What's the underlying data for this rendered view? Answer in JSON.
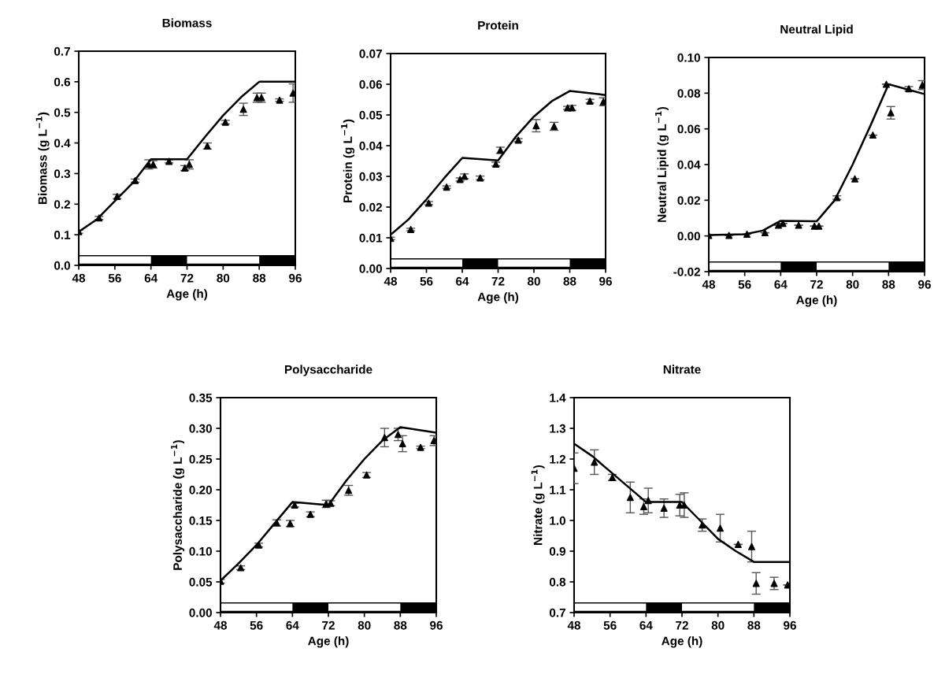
{
  "chart_data": [
    {
      "type": "scatter",
      "title": "Biomass",
      "xlabel": "Age (h)",
      "ylabel": "Biomass (g L$^{−1}$)",
      "xlim": [
        48,
        96
      ],
      "xticks": [
        48,
        56,
        64,
        72,
        80,
        88,
        96
      ],
      "ylim": [
        0,
        0.7
      ],
      "yticks": [
        {
          "value": 0,
          "label": "0.0"
        },
        0.1,
        0.2,
        0.3,
        0.4,
        0.5,
        0.6,
        0.7
      ],
      "marker": "triangle",
      "grid": false,
      "legend": false,
      "series": [
        {
          "color": "#000000",
          "x": [
            48,
            52.5,
            56.5,
            60.5,
            63.5,
            64.5,
            68,
            71.5,
            72.5,
            76.5,
            80.5,
            84.5,
            87.5,
            88.5,
            92.5,
            95.5
          ],
          "values": [
            0.11,
            0.155,
            0.225,
            0.277,
            0.33,
            0.33,
            0.34,
            0.318,
            0.33,
            0.39,
            0.468,
            0.51,
            0.548,
            0.548,
            0.54,
            0.563
          ],
          "errors": [
            0.005,
            0.005,
            0.007,
            0.005,
            0.015,
            0.012,
            0.005,
            0.008,
            0.015,
            0.01,
            0.006,
            0.02,
            0.015,
            0.015,
            0.004,
            0.03
          ]
        },
        {
          "type": "line",
          "marker": "none",
          "color": "#000000",
          "x": [
            48,
            52,
            56,
            60,
            64,
            72,
            76,
            80,
            84,
            88,
            96
          ],
          "values": [
            0.11,
            0.15,
            0.21,
            0.27,
            0.347,
            0.347,
            0.42,
            0.49,
            0.55,
            0.6,
            0.6
          ]
        }
      ]
    },
    {
      "type": "scatter",
      "title": "Protein",
      "xlabel": "Age (h)",
      "ylabel": "Protein (g L$^{−1}$)",
      "xlim": [
        48,
        96
      ],
      "xticks": [
        48,
        56,
        64,
        72,
        80,
        88,
        96
      ],
      "ylim": [
        0,
        0.07
      ],
      "yticks": [
        {
          "value": 0,
          "label": "0.00"
        },
        0.01,
        0.02,
        0.03,
        0.04,
        0.05,
        0.06,
        0.07
      ],
      "marker": "triangle",
      "grid": false,
      "legend": false,
      "series": [
        {
          "color": "#000000",
          "x": [
            48,
            52.5,
            56.5,
            60.5,
            63.5,
            64.5,
            68,
            71.5,
            72.5,
            76.5,
            80.5,
            84.5,
            87.5,
            88.5,
            92.5,
            95.5
          ],
          "values": [
            0.0098,
            0.0127,
            0.0213,
            0.0265,
            0.029,
            0.03,
            0.0295,
            0.034,
            0.0385,
            0.0418,
            0.0465,
            0.0463,
            0.0523,
            0.0523,
            0.0545,
            0.0543
          ],
          "errors": [
            0.0004,
            0.0004,
            0.0005,
            0.0004,
            0.0005,
            0.0008,
            0.0006,
            0.0006,
            0.001,
            0.0005,
            0.002,
            0.0013,
            0.0005,
            0.0008,
            0.0006,
            0.0013
          ]
        },
        {
          "type": "line",
          "marker": "none",
          "color": "#000000",
          "x": [
            48,
            52,
            56,
            60,
            64,
            72,
            76,
            80,
            84,
            88,
            96
          ],
          "values": [
            0.011,
            0.016,
            0.0225,
            0.0295,
            0.036,
            0.0352,
            0.043,
            0.0495,
            0.0545,
            0.0578,
            0.0565
          ]
        }
      ]
    },
    {
      "type": "scatter",
      "title": "Neutral Lipid",
      "xlabel": "Age (h)",
      "ylabel": "Neutral Lipid (g L$^{−1}$)",
      "xlim": [
        48,
        96
      ],
      "xticks": [
        48,
        56,
        64,
        72,
        80,
        88,
        96
      ],
      "ylim": [
        -0.02,
        0.1
      ],
      "yticks": [
        {
          "value": -0.02,
          "label": "-0.02"
        },
        {
          "value": 0,
          "label": "0.00"
        },
        0.02,
        0.04,
        0.06,
        0.08,
        {
          "value": 0.1,
          "label": "0.10"
        }
      ],
      "marker": "triangle",
      "grid": false,
      "legend": false,
      "series": [
        {
          "color": "#000000",
          "x": [
            48,
            52.5,
            56.5,
            60.5,
            63.5,
            64.5,
            68,
            71.5,
            72.5,
            76.5,
            80.5,
            84.5,
            87.5,
            88.5,
            92.5,
            95.5
          ],
          "values": [
            0.0003,
            0.0003,
            0.001,
            0.0018,
            0.006,
            0.007,
            0.006,
            0.0055,
            0.0055,
            0.0215,
            0.032,
            0.0565,
            0.085,
            0.069,
            0.0825,
            0.0845
          ],
          "errors": [
            null,
            null,
            null,
            null,
            null,
            null,
            null,
            null,
            null,
            0.001,
            null,
            null,
            null,
            0.0035,
            0.0012,
            0.0025
          ]
        },
        {
          "type": "line",
          "marker": "none",
          "color": "#000000",
          "x": [
            48,
            56,
            60,
            64,
            72,
            76,
            80,
            84,
            88,
            96
          ],
          "values": [
            0.0005,
            0.001,
            0.003,
            0.0085,
            0.0082,
            0.02,
            0.04,
            0.062,
            0.085,
            0.0795
          ]
        }
      ]
    },
    {
      "type": "scatter",
      "title": "Polysaccharide",
      "xlabel": "Age (h)",
      "ylabel": "Polysaccharide (g L$^{−1}$)",
      "xlim": [
        48,
        96
      ],
      "xticks": [
        48,
        56,
        64,
        72,
        80,
        88,
        96
      ],
      "ylim": [
        0,
        0.35
      ],
      "yticks": [
        {
          "value": 0,
          "label": "0.00"
        },
        0.05,
        {
          "value": 0.1,
          "label": "0.10"
        },
        0.15,
        {
          "value": 0.2,
          "label": "0.20"
        },
        0.25,
        {
          "value": 0.3,
          "label": "0.30"
        },
        0.35
      ],
      "marker": "triangle",
      "grid": false,
      "legend": false,
      "series": [
        {
          "color": "#000000",
          "x": [
            48,
            52.5,
            56.5,
            60.5,
            63.5,
            64.5,
            68,
            71.5,
            72.5,
            76.5,
            80.5,
            84.5,
            87.5,
            88.5,
            92.5,
            95.5
          ],
          "values": [
            0.051,
            0.073,
            0.11,
            0.146,
            0.145,
            0.175,
            0.16,
            0.177,
            0.178,
            0.199,
            0.224,
            0.285,
            0.29,
            0.275,
            0.269,
            0.28
          ],
          "errors": [
            0.003,
            0.003,
            0.003,
            0.005,
            0.005,
            0.003,
            0.004,
            0.006,
            0.004,
            0.008,
            0.004,
            0.015,
            0.01,
            0.013,
            0.002,
            0.008
          ]
        },
        {
          "type": "line",
          "marker": "none",
          "color": "#000000",
          "x": [
            48,
            52,
            56,
            60,
            64,
            72,
            76,
            80,
            84,
            88,
            96
          ],
          "values": [
            0.052,
            0.08,
            0.11,
            0.145,
            0.18,
            0.175,
            0.215,
            0.25,
            0.28,
            0.302,
            0.293
          ]
        }
      ]
    },
    {
      "type": "scatter",
      "title": "Nitrate",
      "xlabel": "Age (h)",
      "ylabel": "Nitrate (g L$^{−1}$)",
      "xlim": [
        48,
        96
      ],
      "xticks": [
        48,
        56,
        64,
        72,
        80,
        88,
        96
      ],
      "ylim": [
        0.7,
        1.4
      ],
      "yticks": [
        0.7,
        0.8,
        0.9,
        {
          "value": 1.0,
          "label": "1.0"
        },
        1.1,
        1.2,
        1.3,
        1.4
      ],
      "marker": "triangle",
      "grid": false,
      "legend": false,
      "series": [
        {
          "color": "#000000",
          "x": [
            48,
            52.5,
            56.5,
            60.5,
            63.5,
            64.5,
            68,
            71.5,
            72.5,
            76.5,
            80.5,
            84.5,
            87.5,
            88.5,
            92.5,
            95.5
          ],
          "values": [
            1.17,
            1.19,
            1.14,
            1.075,
            1.045,
            1.065,
            1.04,
            1.05,
            1.05,
            0.985,
            0.975,
            0.922,
            0.915,
            0.795,
            0.795,
            0.79
          ],
          "errors": [
            0.05,
            0.04,
            0.01,
            0.05,
            0.025,
            0.04,
            0.03,
            0.035,
            0.04,
            0.02,
            0.045,
            null,
            0.05,
            0.035,
            0.02,
            null
          ]
        },
        {
          "type": "line",
          "marker": "none",
          "color": "#000000",
          "x": [
            48,
            52,
            56,
            60,
            64,
            72,
            76,
            80,
            84,
            88,
            96
          ],
          "values": [
            1.25,
            1.21,
            1.16,
            1.11,
            1.06,
            1.06,
            1.0,
            0.94,
            0.9,
            0.865,
            0.865
          ]
        }
      ]
    }
  ]
}
